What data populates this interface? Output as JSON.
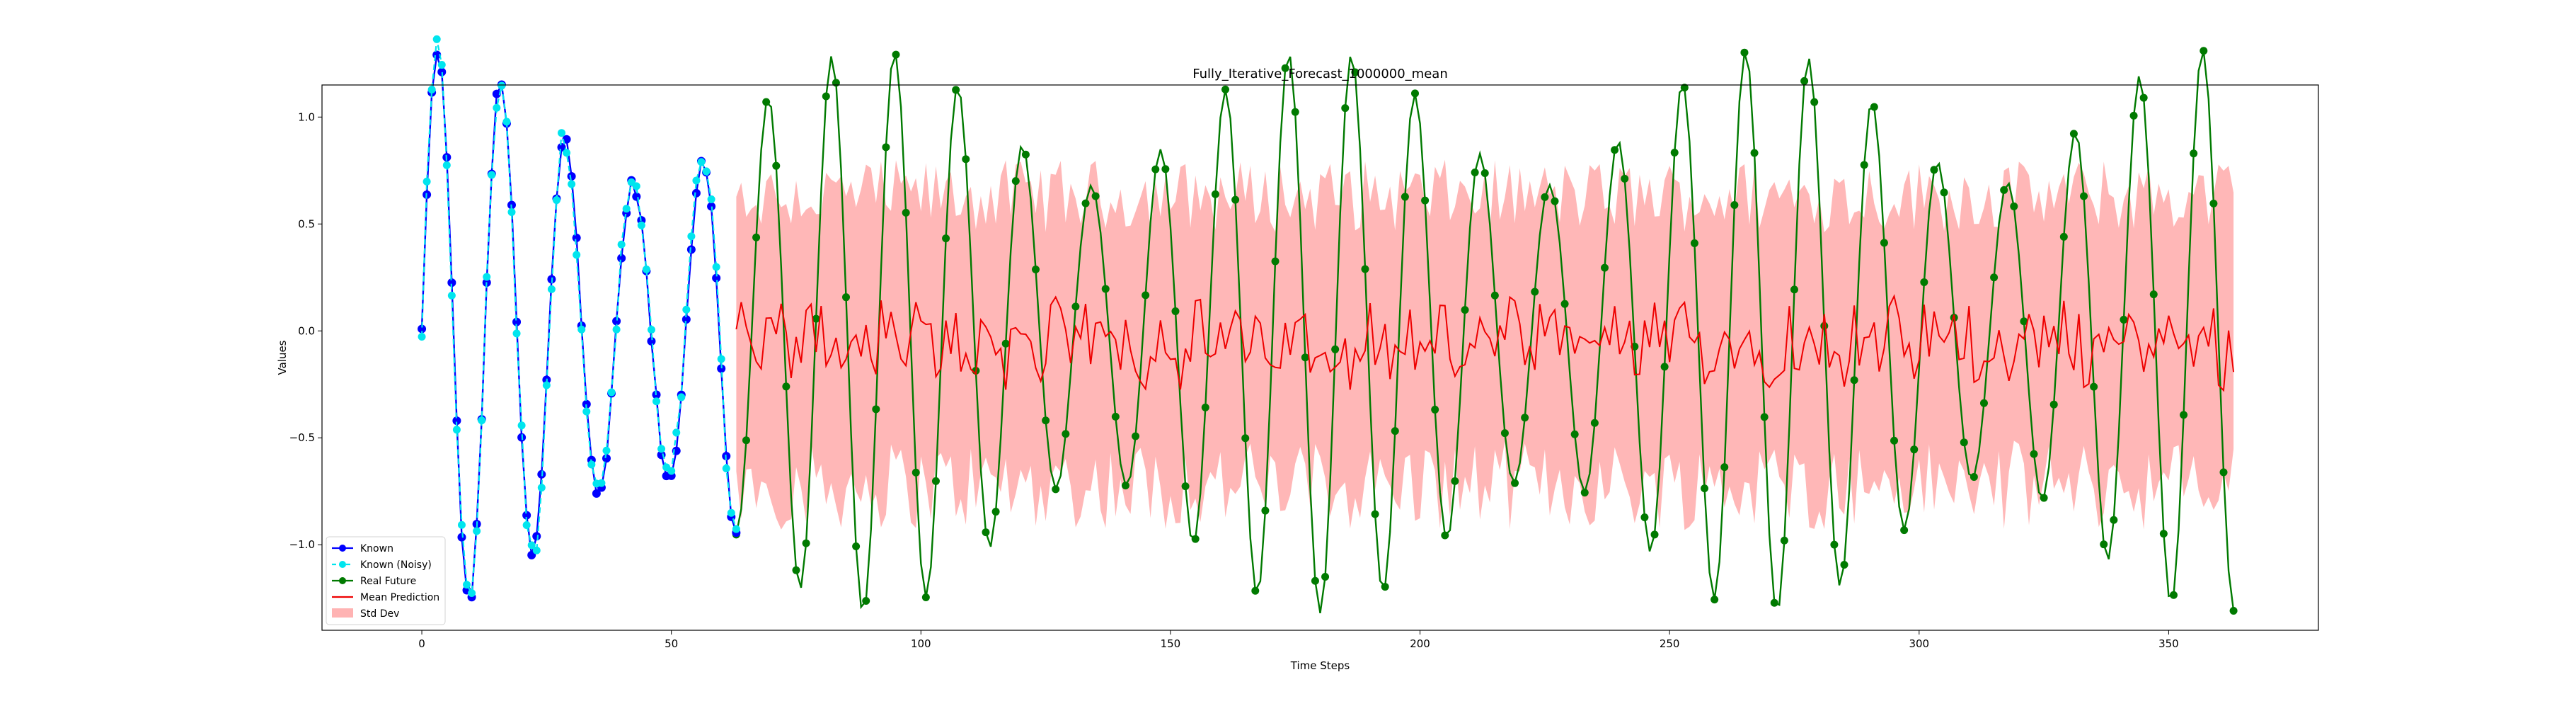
{
  "chart_data": {
    "type": "line",
    "title": "Fully_Iterative_Forecast_1000000_mean",
    "xlabel": "Time Steps",
    "ylabel": "Values",
    "xlim": [
      -20,
      380
    ],
    "ylim": [
      -1.4,
      1.15
    ],
    "xticks": [
      0,
      50,
      100,
      150,
      200,
      250,
      300,
      350
    ],
    "yticks": [
      -1.0,
      -0.5,
      0.0,
      0.5,
      1.0
    ],
    "xtick_labels": [
      "0",
      "50",
      "100",
      "150",
      "200",
      "250",
      "300",
      "350"
    ],
    "ytick_labels": [
      "−1.0",
      "−0.5",
      "0.0",
      "0.5",
      "1.0"
    ],
    "grid": false,
    "legend_position": "lower-left",
    "known_range": [
      0,
      63
    ],
    "future_range": [
      63,
      363
    ],
    "colors": {
      "known": "#0000ff",
      "known_noisy": "#00e5ee",
      "real_future": "#007a00",
      "mean_prediction": "#ee0000",
      "std_band": "#ffb3b3"
    },
    "series": [
      {
        "name": "Known",
        "kind": "line-marker",
        "color": "#0000ff",
        "formula": "sin(0.48*t) + 0.32*sin(0.55*t) with small noise",
        "range": [
          0,
          63
        ]
      },
      {
        "name": "Known (Noisy)",
        "kind": "dashed-marker",
        "color": "#00e5ee",
        "formula": "Known + small noise",
        "range": [
          0,
          63
        ]
      },
      {
        "name": "Real Future",
        "kind": "line-marker",
        "color": "#007a00",
        "formula": "sin(0.48*t) + 0.32*sin(0.55*t)",
        "range": [
          63,
          363
        ]
      },
      {
        "name": "Mean Prediction",
        "kind": "line",
        "color": "#ee0000",
        "approx_mean": -0.05,
        "approx_range": [
          -0.3,
          0.15
        ],
        "range": [
          63,
          363
        ]
      },
      {
        "name": "Std Dev",
        "kind": "band",
        "color": "#ffb3b3",
        "approx_upper": [
          0.5,
          0.9
        ],
        "approx_lower": [
          -1.1,
          -0.5
        ],
        "range": [
          63,
          363
        ]
      }
    ]
  }
}
